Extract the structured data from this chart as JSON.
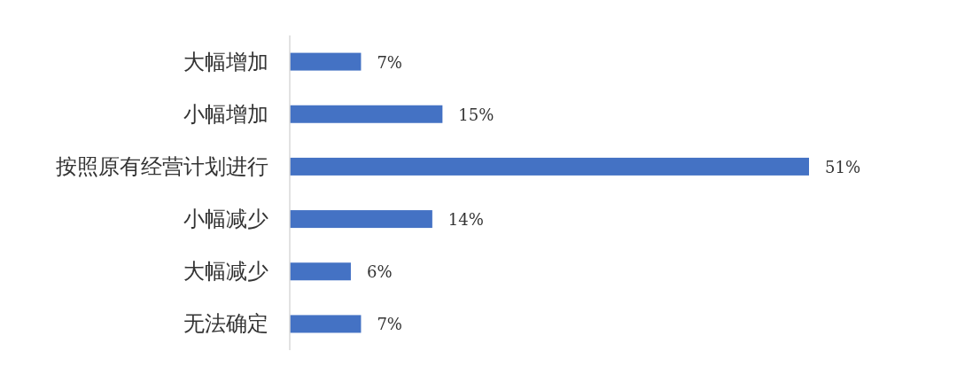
{
  "chart_data": {
    "type": "bar",
    "orientation": "horizontal",
    "categories": [
      "大幅增加",
      "小幅增加",
      "按照原有经营计划进行",
      "小幅减少",
      "大幅减少",
      "无法确定"
    ],
    "values": [
      7,
      15,
      51,
      14,
      6,
      7
    ],
    "color": "#4472c4",
    "value_labels": [
      "7%",
      "15%",
      "51%",
      "14%",
      "6%",
      "7%"
    ]
  }
}
